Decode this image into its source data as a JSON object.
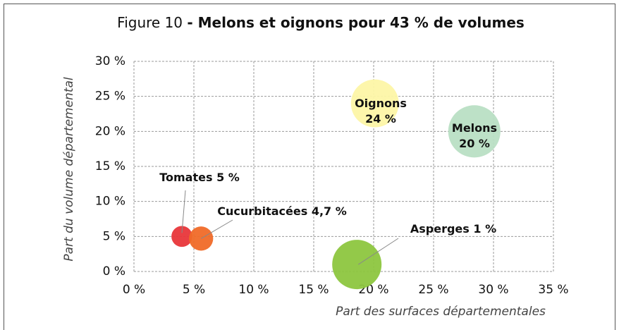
{
  "chart_data": {
    "type": "scatter",
    "title": "Figure 10",
    "title_bold": "- Melons et oignons pour 43 % de volumes",
    "x_label": "Part des surfaces départementales",
    "y_label": "Part du volume départemental",
    "xlim": [
      0,
      35
    ],
    "ylim": [
      0,
      30
    ],
    "xticks": [
      {
        "value": 0,
        "label": "0 %"
      },
      {
        "value": 5,
        "label": "5 %"
      },
      {
        "value": 10,
        "label": "10 %"
      },
      {
        "value": 15,
        "label": "15 %"
      },
      {
        "value": 20,
        "label": "20 %"
      },
      {
        "value": 25,
        "label": "25 %"
      },
      {
        "value": 30,
        "label": "30 %"
      },
      {
        "value": 35,
        "label": "35 %"
      }
    ],
    "yticks": [
      {
        "value": 0,
        "label": "0 %"
      },
      {
        "value": 5,
        "label": "5 %"
      },
      {
        "value": 10,
        "label": "10 %"
      },
      {
        "value": 15,
        "label": "15 %"
      },
      {
        "value": 20,
        "label": "20 %"
      },
      {
        "value": 25,
        "label": "25 %"
      },
      {
        "value": 30,
        "label": "30 %"
      }
    ],
    "grid": true,
    "points": [
      {
        "name": "Tomates",
        "color": "#e8363a",
        "x": 4.0,
        "y": 5.0,
        "size": 18,
        "value_label": "5 %"
      },
      {
        "name": "Cucurbitacées",
        "color": "#f06a28",
        "x": 5.6,
        "y": 4.7,
        "size": 24,
        "value_label": "4,7 %"
      },
      {
        "name": "Oignons",
        "color": "#fdf5a6",
        "x": 20.1,
        "y": 24,
        "size": 94,
        "value_label": "24 %"
      },
      {
        "name": "Melons",
        "color": "#b9dfc4",
        "x": 28.4,
        "y": 20,
        "size": 112,
        "value_label": "20 %"
      },
      {
        "name": "Asperges",
        "color": "#8dc63f",
        "x": 18.6,
        "y": 1,
        "size": 100,
        "value_label": "1 %"
      }
    ]
  }
}
